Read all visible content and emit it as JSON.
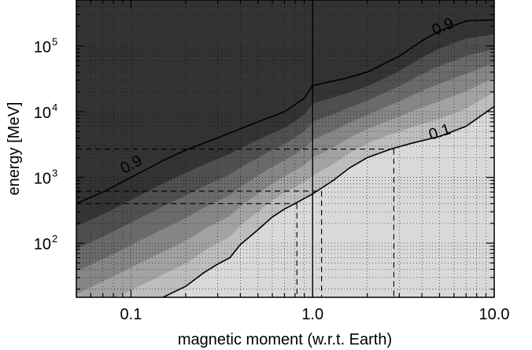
{
  "chart_data": {
    "type": "heatmap",
    "title": "",
    "xlabel": "magnetic moment (w.r.t. Earth)",
    "ylabel": "energy [MeV]",
    "x_scale": "log",
    "y_scale": "log",
    "xlim": [
      0.05,
      10.0
    ],
    "ylim": [
      15,
      500000
    ],
    "grid": true,
    "x_ticks": [
      {
        "value": 0.1,
        "label": "0.1"
      },
      {
        "value": 1.0,
        "label": "1.0"
      },
      {
        "value": 10.0,
        "label": "10.0"
      }
    ],
    "y_ticks": [
      {
        "value": 100,
        "base": "10",
        "exp": "2"
      },
      {
        "value": 1000,
        "base": "10",
        "exp": "3"
      },
      {
        "value": 10000,
        "base": "10",
        "exp": "4"
      },
      {
        "value": 100000,
        "base": "10",
        "exp": "5"
      }
    ],
    "contour_lines": [
      {
        "label": "0.9",
        "label_at": [
          [
            0.1,
            1600
          ],
          [
            5.2,
            200000
          ]
        ],
        "points": [
          [
            0.05,
            400
          ],
          [
            0.07,
            600
          ],
          [
            0.1,
            1000
          ],
          [
            0.15,
            1800
          ],
          [
            0.2,
            2600
          ],
          [
            0.3,
            4000
          ],
          [
            0.5,
            7000
          ],
          [
            0.7,
            10000
          ],
          [
            0.9,
            16000
          ],
          [
            1.0,
            25000
          ],
          [
            1.5,
            32000
          ],
          [
            2.0,
            40000
          ],
          [
            3.0,
            70000
          ],
          [
            4.0,
            120000
          ],
          [
            5.0,
            170000
          ],
          [
            7.0,
            240000
          ],
          [
            10.0,
            250000
          ]
        ]
      },
      {
        "label": "0.1",
        "label_at": [
          [
            5.0,
            5000
          ]
        ],
        "points": [
          [
            0.15,
            15
          ],
          [
            0.2,
            22
          ],
          [
            0.25,
            35
          ],
          [
            0.3,
            48
          ],
          [
            0.35,
            60
          ],
          [
            0.4,
            95
          ],
          [
            0.5,
            160
          ],
          [
            0.6,
            250
          ],
          [
            0.7,
            330
          ],
          [
            0.8,
            400
          ],
          [
            1.0,
            560
          ],
          [
            1.3,
            900
          ],
          [
            1.6,
            1400
          ],
          [
            2.0,
            2000
          ],
          [
            2.7,
            2700
          ],
          [
            3.5,
            3300
          ],
          [
            5.0,
            4200
          ],
          [
            7.0,
            6000
          ],
          [
            10.0,
            12000
          ]
        ]
      }
    ],
    "reference_lines": {
      "vertical_solid": 1.0,
      "dashed_segments": [
        {
          "x": 0.82,
          "y": 400
        },
        {
          "x": 1.12,
          "y": 620
        },
        {
          "x": 2.8,
          "y": 2700
        }
      ]
    },
    "shading": {
      "low_color": "#d9d9d9",
      "high_color": "#333333",
      "bands": 7
    }
  }
}
